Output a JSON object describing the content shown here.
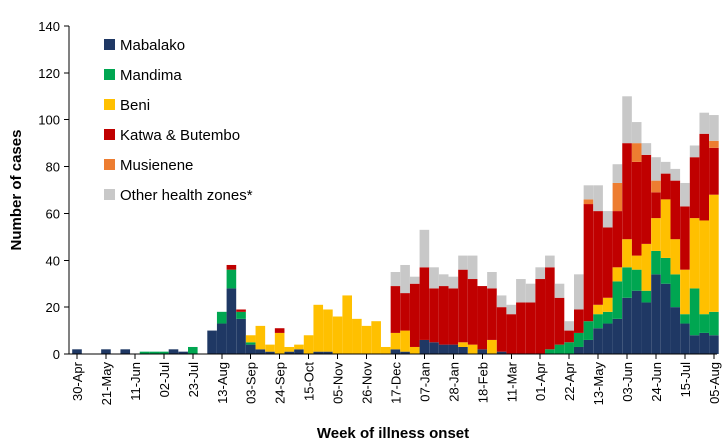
{
  "chart_data": {
    "type": "bar",
    "stacked": true,
    "title": "",
    "xlabel": "Week of illness onset",
    "ylabel": "Number of cases",
    "ylim": [
      0,
      140
    ],
    "yticks": [
      0,
      20,
      40,
      60,
      80,
      100,
      120,
      140
    ],
    "grid": false,
    "legend_position": "top-left",
    "x_tick_labels": [
      "30-Apr",
      "21-May",
      "11-Jun",
      "02-Jul",
      "23-Jul",
      "13-Aug",
      "03-Sep",
      "24-Sep",
      "15-Oct",
      "05-Nov",
      "26-Nov",
      "17-Dec",
      "07-Jan",
      "28-Jan",
      "18-Feb",
      "11-Mar",
      "01-Apr",
      "22-Apr",
      "13-May",
      "03-Jun",
      "24-Jun",
      "15-Jul",
      "05-Aug"
    ],
    "weeks": 67,
    "series": [
      {
        "name": "Mabalako",
        "color": "#1f3864",
        "values": [
          2,
          0,
          0,
          2,
          0,
          2,
          0,
          0,
          0,
          0,
          2,
          1,
          0,
          0,
          10,
          13,
          28,
          15,
          4,
          2,
          1,
          0,
          1,
          2,
          0,
          1,
          1,
          0,
          0,
          0,
          0,
          0,
          0,
          2,
          1,
          0,
          6,
          5,
          4,
          4,
          3,
          0,
          2,
          0,
          1,
          0,
          0,
          0,
          0,
          0,
          0,
          0,
          3,
          6,
          11,
          13,
          15,
          24,
          27,
          22,
          34,
          30,
          20,
          13,
          8,
          9,
          8
        ]
      },
      {
        "name": "Mandima",
        "color": "#00a651",
        "values": [
          0,
          0,
          0,
          0,
          0,
          0,
          0,
          1,
          1,
          1,
          0,
          0,
          3,
          0,
          0,
          5,
          8,
          3,
          1,
          0,
          0,
          0,
          0,
          0,
          0,
          0,
          0,
          0,
          0,
          0,
          0,
          0,
          0,
          0,
          0,
          0,
          0,
          0,
          0,
          0,
          0,
          0,
          0,
          0,
          0,
          0,
          0,
          0,
          0,
          2,
          4,
          5,
          6,
          8,
          6,
          5,
          16,
          13,
          9,
          5,
          10,
          11,
          14,
          4,
          20,
          8,
          10
        ]
      },
      {
        "name": "Beni",
        "color": "#ffc000",
        "values": [
          0,
          0,
          0,
          0,
          0,
          0,
          0,
          0,
          0,
          0,
          0,
          0,
          0,
          0,
          0,
          0,
          0,
          0,
          3,
          10,
          3,
          9,
          2,
          2,
          8,
          20,
          18,
          16,
          25,
          15,
          12,
          14,
          3,
          7,
          9,
          3,
          0,
          0,
          0,
          0,
          2,
          4,
          0,
          6,
          0,
          0,
          0,
          0,
          0,
          0,
          0,
          0,
          0,
          0,
          4,
          6,
          6,
          12,
          6,
          20,
          14,
          25,
          15,
          19,
          30,
          40,
          50
        ]
      },
      {
        "name": "Katwa & Butembo",
        "color": "#c00000",
        "values": [
          0,
          0,
          0,
          0,
          0,
          0,
          0,
          0,
          0,
          0,
          0,
          0,
          0,
          0,
          0,
          0,
          2,
          1,
          0,
          0,
          0,
          2,
          0,
          0,
          0,
          0,
          0,
          0,
          0,
          0,
          0,
          0,
          0,
          20,
          16,
          27,
          31,
          23,
          25,
          24,
          31,
          28,
          27,
          22,
          19,
          17,
          22,
          22,
          32,
          35,
          20,
          5,
          10,
          50,
          40,
          30,
          24,
          41,
          40,
          38,
          11,
          11,
          25,
          27,
          26,
          37,
          20
        ]
      },
      {
        "name": "Musienene",
        "color": "#ed7d31",
        "values": [
          0,
          0,
          0,
          0,
          0,
          0,
          0,
          0,
          0,
          0,
          0,
          0,
          0,
          0,
          0,
          0,
          0,
          0,
          0,
          0,
          0,
          0,
          0,
          0,
          0,
          0,
          0,
          0,
          0,
          0,
          0,
          0,
          0,
          0,
          0,
          0,
          0,
          0,
          0,
          0,
          0,
          0,
          0,
          0,
          0,
          0,
          0,
          0,
          0,
          0,
          0,
          0,
          0,
          2,
          0,
          0,
          12,
          0,
          8,
          0,
          5,
          0,
          0,
          0,
          0,
          0,
          3
        ]
      },
      {
        "name": "Other health zones*",
        "color": "#c8c8c8",
        "values": [
          0,
          0,
          0,
          0,
          0,
          0,
          0,
          0,
          0,
          0,
          0,
          0,
          0,
          0,
          0,
          0,
          0,
          0,
          0,
          0,
          0,
          0,
          0,
          0,
          0,
          0,
          0,
          0,
          0,
          0,
          0,
          0,
          0,
          6,
          12,
          3,
          16,
          9,
          5,
          5,
          6,
          10,
          0,
          7,
          5,
          4,
          10,
          8,
          5,
          5,
          6,
          4,
          15,
          6,
          11,
          7,
          8,
          20,
          9,
          5,
          10,
          5,
          5,
          10,
          5,
          9,
          11
        ]
      }
    ]
  }
}
